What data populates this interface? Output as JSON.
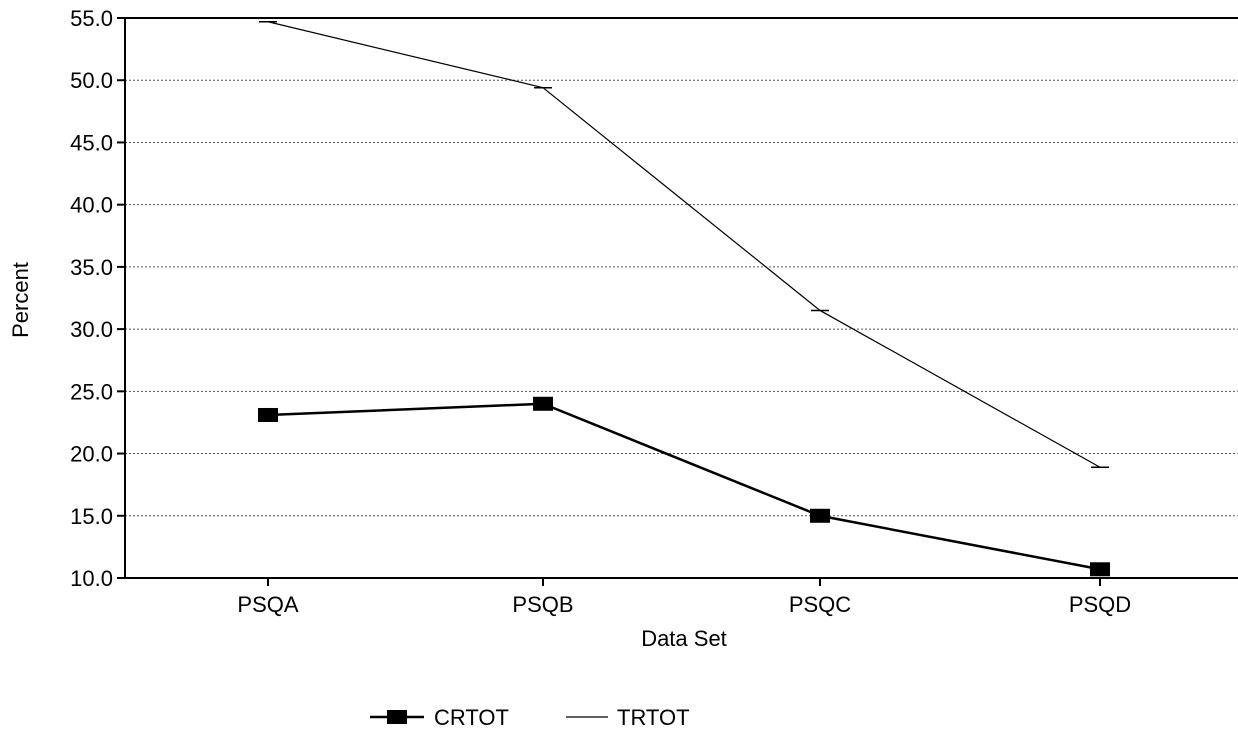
{
  "chart_data": {
    "type": "line",
    "categories": [
      "PSQA",
      "PSQB",
      "PSQC",
      "PSQD"
    ],
    "series": [
      {
        "name": "CRTOT",
        "values": [
          23.1,
          24.0,
          15.0,
          10.7
        ],
        "color": "#000000",
        "marker": "square"
      },
      {
        "name": "TRTOT",
        "values": [
          54.7,
          49.4,
          31.5,
          18.9
        ],
        "color": "#000000",
        "marker": "dash"
      }
    ],
    "xlabel": "Data Set",
    "ylabel": "Percent",
    "ylim": [
      10.0,
      55.0
    ],
    "yticks": [
      "10.0",
      "15.0",
      "20.0",
      "25.0",
      "30.0",
      "35.0",
      "40.0",
      "45.0",
      "50.0",
      "55.0"
    ],
    "grid": true,
    "legend_placement": "bottom-center"
  }
}
